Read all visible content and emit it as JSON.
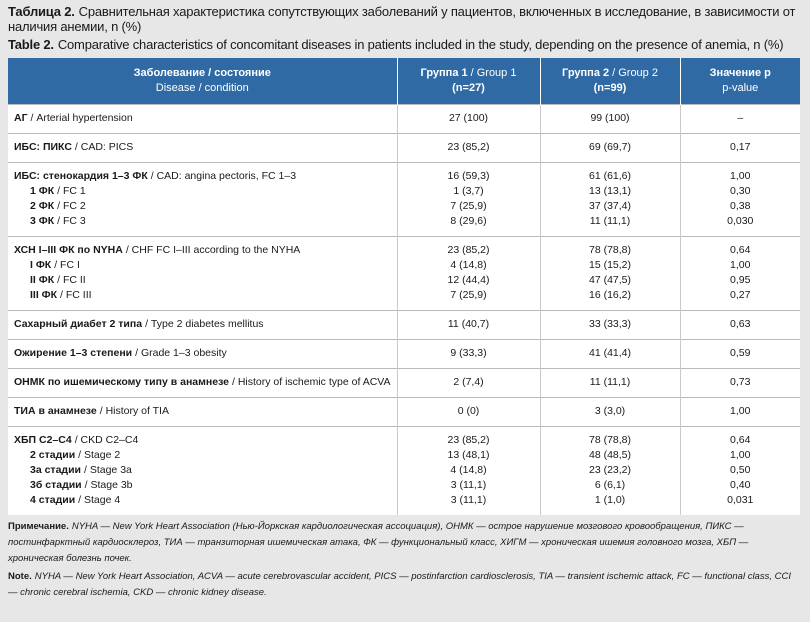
{
  "caption": {
    "ru": {
      "label": "Таблица 2.",
      "text": "Сравнительная характеристика сопутствующих заболеваний у пациентов, включенных в исследование, в зависимости от наличия анемии, n (%)"
    },
    "en": {
      "label": "Table 2.",
      "text": "Comparative characteristics of concomitant diseases in patients included in the study, depending on the presence of anemia, n (%)"
    }
  },
  "table": {
    "header": [
      [
        {
          "bold": "Заболевание / состояние"
        },
        {
          "regular": "Disease / condition"
        }
      ],
      [
        {
          "bold": "Группа 1",
          "regular": "/ Group 1"
        },
        {
          "bold": "(n=27)"
        }
      ],
      [
        {
          "bold": "Группа 2",
          "regular": "/ Group 2"
        },
        {
          "bold": "(n=99)"
        }
      ],
      [
        {
          "bold": "Значение p"
        },
        {
          "regular": "p-value"
        }
      ]
    ],
    "groups": [
      {
        "rows": [
          {
            "label": {
              "bold": "АГ",
              "regular": "/ Arterial hypertension"
            },
            "cells": [
              "27 (100)",
              "99 (100)",
              "–"
            ]
          }
        ]
      },
      {
        "rows": [
          {
            "label": {
              "bold": "ИБС: ПИКС",
              "regular": "/ CAD: PICS"
            },
            "cells": [
              "23 (85,2)",
              "69 (69,7)",
              "0,17"
            ]
          }
        ]
      },
      {
        "rows": [
          {
            "label": {
              "bold": "ИБС: стенокардия 1–3 ФК",
              "regular": "/ CAD: angina pectoris, FC 1–3"
            },
            "cells": [
              "16 (59,3)",
              "61 (61,6)",
              "1,00"
            ]
          },
          {
            "label": {
              "bold": "1 ФК",
              "regular": "/ FC 1"
            },
            "cells": [
              "1 (3,7)",
              "13 (13,1)",
              "0,30"
            ]
          },
          {
            "label": {
              "bold": "2 ФК",
              "regular": "/ FC 2"
            },
            "cells": [
              "7 (25,9)",
              "37 (37,4)",
              "0,38"
            ]
          },
          {
            "label": {
              "bold": "3 ФК",
              "regular": "/ FC 3"
            },
            "cells": [
              "8 (29,6)",
              "11 (11,1)",
              "0,030"
            ]
          }
        ]
      },
      {
        "rows": [
          {
            "label": {
              "bold": "ХСН I–III ФК по NYHA",
              "regular": "/ CHF FC I–III according to the NYHA"
            },
            "cells": [
              "23 (85,2)",
              "78 (78,8)",
              "0,64"
            ]
          },
          {
            "label": {
              "bold": "I ФК",
              "regular": "/ FC I"
            },
            "cells": [
              "4 (14,8)",
              "15 (15,2)",
              "1,00"
            ]
          },
          {
            "label": {
              "bold": "II ФК",
              "regular": "/ FC II"
            },
            "cells": [
              "12 (44,4)",
              "47 (47,5)",
              "0,95"
            ]
          },
          {
            "label": {
              "bold": "III ФК",
              "regular": "/ FC III"
            },
            "cells": [
              "7 (25,9)",
              "16 (16,2)",
              "0,27"
            ]
          }
        ]
      },
      {
        "rows": [
          {
            "label": {
              "bold": "Сахарный диабет 2 типа",
              "regular": "/ Type 2 diabetes mellitus"
            },
            "cells": [
              "11 (40,7)",
              "33 (33,3)",
              "0,63"
            ]
          }
        ]
      },
      {
        "rows": [
          {
            "label": {
              "bold": "Ожирение 1–3 степени",
              "regular": "/ Grade 1–3 obesity"
            },
            "cells": [
              "9 (33,3)",
              "41 (41,4)",
              "0,59"
            ]
          }
        ]
      },
      {
        "rows": [
          {
            "label": {
              "bold": "ОНМК по ишемическому типу в анамнезе",
              "regular": "/ History of ischemic type of ACVA"
            },
            "cells": [
              "2 (7,4)",
              "11 (11,1)",
              "0,73"
            ]
          }
        ]
      },
      {
        "rows": [
          {
            "label": {
              "bold": "ТИА в анамнезе",
              "regular": "/ History of TIA"
            },
            "cells": [
              "0 (0)",
              "3 (3,0)",
              "1,00"
            ]
          }
        ]
      },
      {
        "rows": [
          {
            "label": {
              "bold": "ХБП С2–С4",
              "regular": "/ CKD C2–C4"
            },
            "cells": [
              "23 (85,2)",
              "78 (78,8)",
              "0,64"
            ]
          },
          {
            "label": {
              "bold": "2 стадии",
              "regular": "/ Stage 2"
            },
            "cells": [
              "13 (48,1)",
              "48 (48,5)",
              "1,00"
            ]
          },
          {
            "label": {
              "bold": "3а стадии",
              "regular": "/ Stage 3a"
            },
            "cells": [
              "4 (14,8)",
              "23 (23,2)",
              "0,50"
            ]
          },
          {
            "label": {
              "bold": "3б стадии",
              "regular": "/ Stage 3b"
            },
            "cells": [
              "3 (11,1)",
              "6 (6,1)",
              "0,40"
            ]
          },
          {
            "label": {
              "bold": "4 стадии",
              "regular": "/ Stage 4"
            },
            "cells": [
              "3 (11,1)",
              "1 (1,0)",
              "0,031"
            ]
          }
        ]
      }
    ]
  },
  "notes": {
    "ru": {
      "label": "Примечание.",
      "text": "NYHA — New York Heart Association (Нью-Йоркская кардиологическая ассоциация), ОНМК — острое нарушение мозгового кровообращения, ПИКС — постинфарктный кардиосклероз, ТИА — транзиторная ишемическая атака, ФК — функциональный класс, ХИГМ — хроническая ишемия головного мозга, ХБП — хроническая болезнь почек."
    },
    "en": {
      "label": "Note.",
      "text": "NYHA — New York Heart Association, ACVA — acute cerebrovascular accident, PICS — postinfarction cardiosclerosis, TIA — transient ischemic attack, FC — functional class, CCI — chronic cerebral ischemia, CKD — chronic kidney disease."
    }
  }
}
